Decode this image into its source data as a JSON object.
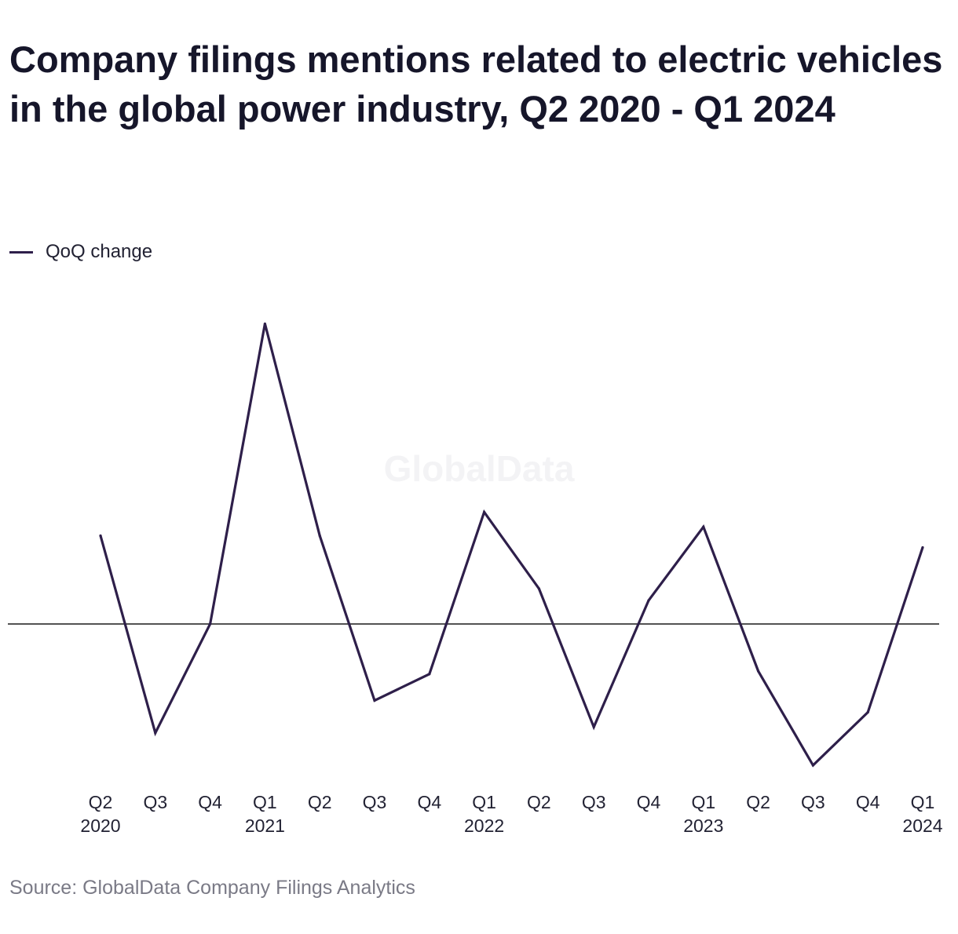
{
  "chart_data": {
    "type": "line",
    "title": "Company filings mentions related to electric vehicles in the global power industry, Q2 2020 - Q1 2024",
    "categories": [
      {
        "quarter": "Q2",
        "year": "2020"
      },
      {
        "quarter": "Q3",
        "year": ""
      },
      {
        "quarter": "Q4",
        "year": ""
      },
      {
        "quarter": "Q1",
        "year": "2021"
      },
      {
        "quarter": "Q2",
        "year": ""
      },
      {
        "quarter": "Q3",
        "year": ""
      },
      {
        "quarter": "Q4",
        "year": ""
      },
      {
        "quarter": "Q1",
        "year": "2022"
      },
      {
        "quarter": "Q2",
        "year": ""
      },
      {
        "quarter": "Q3",
        "year": ""
      },
      {
        "quarter": "Q4",
        "year": ""
      },
      {
        "quarter": "Q1",
        "year": "2023"
      },
      {
        "quarter": "Q2",
        "year": ""
      },
      {
        "quarter": "Q3",
        "year": ""
      },
      {
        "quarter": "Q4",
        "year": ""
      },
      {
        "quarter": "Q1",
        "year": "2024"
      }
    ],
    "series": [
      {
        "name": "QoQ change",
        "color": "#2e1f4a",
        "values": [
          30,
          -37,
          0,
          102,
          30,
          -26,
          -17,
          38,
          12,
          -35,
          8,
          33,
          -16,
          -48,
          -30,
          26
        ]
      }
    ],
    "ylim": [
      -52,
      108
    ],
    "baseline": 0,
    "y_axis_labels": false,
    "grid": false,
    "legend": "top-left",
    "xlabel": "",
    "ylabel": "",
    "watermark": "GlobalData",
    "source": "Source: GlobalData Company Filings Analytics"
  }
}
